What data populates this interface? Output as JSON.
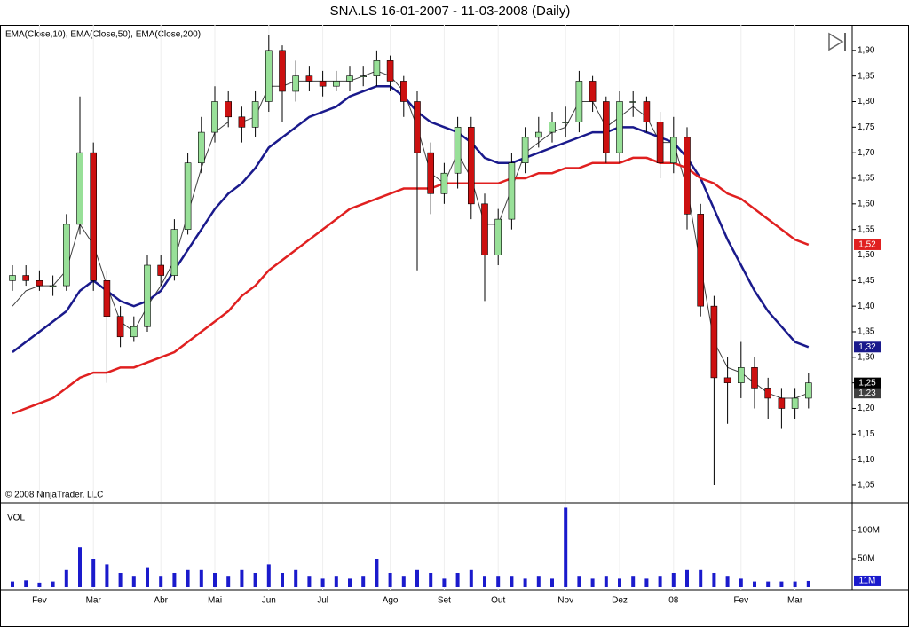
{
  "chart_data": [
    {
      "type": "candlestick",
      "title": "SNA.LS  16-01-2007 - 11-03-2008 (Daily)",
      "indicators": "EMA(Close,10), EMA(Close,50), EMA(Close,200)",
      "copyright": "© 2008 NinjaTrader, LLC",
      "open": [
        1.45,
        1.46,
        1.45,
        1.44,
        1.44,
        1.56,
        1.7,
        1.45,
        1.38,
        1.34,
        1.36,
        1.48,
        1.46,
        1.55,
        1.68,
        1.74,
        1.8,
        1.77,
        1.75,
        1.8,
        1.9,
        1.82,
        1.85,
        1.84,
        1.83,
        1.84,
        1.85,
        1.85,
        1.88,
        1.84,
        1.8,
        1.7,
        1.62,
        1.66,
        1.75,
        1.6,
        1.5,
        1.57,
        1.68,
        1.73,
        1.74,
        1.76,
        1.76,
        1.84,
        1.8,
        1.7,
        1.8,
        1.8,
        1.76,
        1.68,
        1.73,
        1.58,
        1.4,
        1.26,
        1.25,
        1.28,
        1.24,
        1.22,
        1.2,
        1.22
      ],
      "high": [
        1.48,
        1.48,
        1.47,
        1.46,
        1.58,
        1.81,
        1.72,
        1.47,
        1.4,
        1.38,
        1.5,
        1.5,
        1.57,
        1.7,
        1.77,
        1.83,
        1.82,
        1.79,
        1.82,
        1.93,
        1.91,
        1.88,
        1.87,
        1.86,
        1.86,
        1.87,
        1.87,
        1.9,
        1.89,
        1.85,
        1.82,
        1.72,
        1.68,
        1.77,
        1.77,
        1.62,
        1.59,
        1.7,
        1.75,
        1.77,
        1.78,
        1.79,
        1.86,
        1.85,
        1.81,
        1.82,
        1.82,
        1.81,
        1.78,
        1.77,
        1.75,
        1.6,
        1.42,
        1.3,
        1.33,
        1.3,
        1.26,
        1.24,
        1.24,
        1.27
      ],
      "low": [
        1.43,
        1.44,
        1.43,
        1.42,
        1.43,
        1.54,
        1.43,
        1.25,
        1.32,
        1.33,
        1.35,
        1.44,
        1.45,
        1.54,
        1.66,
        1.72,
        1.75,
        1.72,
        1.73,
        1.78,
        1.76,
        1.8,
        1.82,
        1.81,
        1.82,
        1.82,
        1.83,
        1.83,
        1.82,
        1.77,
        1.47,
        1.58,
        1.6,
        1.63,
        1.57,
        1.41,
        1.48,
        1.55,
        1.66,
        1.71,
        1.72,
        1.73,
        1.74,
        1.78,
        1.68,
        1.68,
        1.77,
        1.74,
        1.65,
        1.66,
        1.55,
        1.38,
        1.05,
        1.17,
        1.22,
        1.2,
        1.18,
        1.16,
        1.18,
        1.2
      ],
      "close": [
        1.46,
        1.45,
        1.44,
        1.44,
        1.56,
        1.7,
        1.45,
        1.38,
        1.34,
        1.36,
        1.48,
        1.46,
        1.55,
        1.68,
        1.74,
        1.8,
        1.77,
        1.75,
        1.8,
        1.9,
        1.82,
        1.85,
        1.84,
        1.83,
        1.84,
        1.85,
        1.85,
        1.88,
        1.84,
        1.8,
        1.7,
        1.62,
        1.66,
        1.75,
        1.6,
        1.5,
        1.57,
        1.68,
        1.73,
        1.74,
        1.76,
        1.76,
        1.84,
        1.8,
        1.7,
        1.8,
        1.8,
        1.76,
        1.68,
        1.73,
        1.58,
        1.4,
        1.26,
        1.25,
        1.28,
        1.24,
        1.22,
        1.2,
        1.22,
        1.25
      ],
      "close_label": "1,25",
      "up_color": "#98e098",
      "down_color": "#cc1010",
      "series": [
        {
          "color": "#404040",
          "last_label": "1,23",
          "values": [
            1.4,
            1.43,
            1.44,
            1.44,
            1.47,
            1.56,
            1.52,
            1.44,
            1.37,
            1.35,
            1.4,
            1.44,
            1.49,
            1.58,
            1.67,
            1.74,
            1.76,
            1.76,
            1.77,
            1.83,
            1.83,
            1.84,
            1.84,
            1.84,
            1.84,
            1.84,
            1.85,
            1.86,
            1.85,
            1.82,
            1.75,
            1.66,
            1.64,
            1.7,
            1.65,
            1.56,
            1.56,
            1.63,
            1.7,
            1.72,
            1.74,
            1.75,
            1.8,
            1.8,
            1.75,
            1.77,
            1.79,
            1.77,
            1.72,
            1.72,
            1.63,
            1.48,
            1.33,
            1.28,
            1.27,
            1.25,
            1.23,
            1.22,
            1.22,
            1.23
          ]
        },
        {
          "color": "#1a1a8c",
          "last_label": "1,32",
          "values": [
            1.31,
            1.33,
            1.35,
            1.37,
            1.39,
            1.43,
            1.45,
            1.43,
            1.41,
            1.4,
            1.41,
            1.43,
            1.47,
            1.51,
            1.55,
            1.59,
            1.62,
            1.64,
            1.67,
            1.71,
            1.73,
            1.75,
            1.77,
            1.78,
            1.79,
            1.81,
            1.82,
            1.83,
            1.83,
            1.81,
            1.78,
            1.76,
            1.75,
            1.74,
            1.72,
            1.69,
            1.68,
            1.68,
            1.69,
            1.7,
            1.71,
            1.72,
            1.73,
            1.74,
            1.74,
            1.75,
            1.75,
            1.74,
            1.73,
            1.72,
            1.69,
            1.65,
            1.59,
            1.53,
            1.48,
            1.43,
            1.39,
            1.36,
            1.33,
            1.32
          ]
        },
        {
          "color": "#e02020",
          "last_label": "1,52",
          "values": [
            1.19,
            1.2,
            1.21,
            1.22,
            1.24,
            1.26,
            1.27,
            1.27,
            1.28,
            1.28,
            1.29,
            1.3,
            1.31,
            1.33,
            1.35,
            1.37,
            1.39,
            1.42,
            1.44,
            1.47,
            1.49,
            1.51,
            1.53,
            1.55,
            1.57,
            1.59,
            1.6,
            1.61,
            1.62,
            1.63,
            1.63,
            1.63,
            1.64,
            1.64,
            1.64,
            1.64,
            1.64,
            1.65,
            1.65,
            1.66,
            1.66,
            1.67,
            1.67,
            1.68,
            1.68,
            1.68,
            1.69,
            1.69,
            1.68,
            1.68,
            1.67,
            1.65,
            1.64,
            1.62,
            1.61,
            1.59,
            1.57,
            1.55,
            1.53,
            1.52
          ]
        }
      ],
      "ylim": [
        1.017,
        1.95
      ],
      "yticks": [
        {
          "value": 1.05,
          "label": "1,05"
        },
        {
          "value": 1.1,
          "label": "1,10"
        },
        {
          "value": 1.15,
          "label": "1,15"
        },
        {
          "value": 1.2,
          "label": "1,20"
        },
        {
          "value": 1.25,
          "label": "1,25"
        },
        {
          "value": 1.3,
          "label": "1,30"
        },
        {
          "value": 1.35,
          "label": "1,35"
        },
        {
          "value": 1.4,
          "label": "1,40"
        },
        {
          "value": 1.45,
          "label": "1,45"
        },
        {
          "value": 1.5,
          "label": "1,50"
        },
        {
          "value": 1.55,
          "label": "1,55"
        },
        {
          "value": 1.6,
          "label": "1,60"
        },
        {
          "value": 1.65,
          "label": "1,65"
        },
        {
          "value": 1.7,
          "label": "1,70"
        },
        {
          "value": 1.75,
          "label": "1,75"
        },
        {
          "value": 1.8,
          "label": "1,80"
        },
        {
          "value": 1.85,
          "label": "1,85"
        },
        {
          "value": 1.9,
          "label": "1,90"
        }
      ]
    },
    {
      "type": "bar",
      "label": "VOL",
      "color": "#1a1acc",
      "value_label": "11M",
      "categories": [
        null,
        null,
        "Fev",
        null,
        null,
        null,
        "Mar",
        null,
        null,
        null,
        null,
        "Abr",
        null,
        null,
        null,
        "Mai",
        null,
        null,
        null,
        "Jun",
        null,
        null,
        null,
        "Jul",
        null,
        null,
        null,
        null,
        "Ago",
        null,
        null,
        null,
        "Set",
        null,
        null,
        null,
        "Out",
        null,
        null,
        null,
        null,
        "Nov",
        null,
        null,
        null,
        "Dez",
        null,
        null,
        null,
        "08",
        null,
        null,
        null,
        null,
        "Fev",
        null,
        null,
        null,
        "Mar",
        null
      ],
      "values": [
        10,
        12,
        8,
        10,
        30,
        70,
        50,
        40,
        25,
        20,
        35,
        20,
        25,
        30,
        30,
        25,
        20,
        30,
        25,
        40,
        25,
        30,
        20,
        15,
        20,
        15,
        20,
        50,
        25,
        20,
        30,
        25,
        15,
        25,
        30,
        20,
        20,
        20,
        15,
        20,
        15,
        140,
        20,
        15,
        20,
        15,
        20,
        15,
        20,
        25,
        30,
        30,
        25,
        20,
        15,
        10,
        10,
        10,
        10,
        11
      ],
      "ylim": [
        -4.7,
        146.9
      ],
      "yticks": [
        {
          "value": 50,
          "label": "50M"
        },
        {
          "value": 100,
          "label": "100M"
        }
      ],
      "grid": "x"
    }
  ]
}
